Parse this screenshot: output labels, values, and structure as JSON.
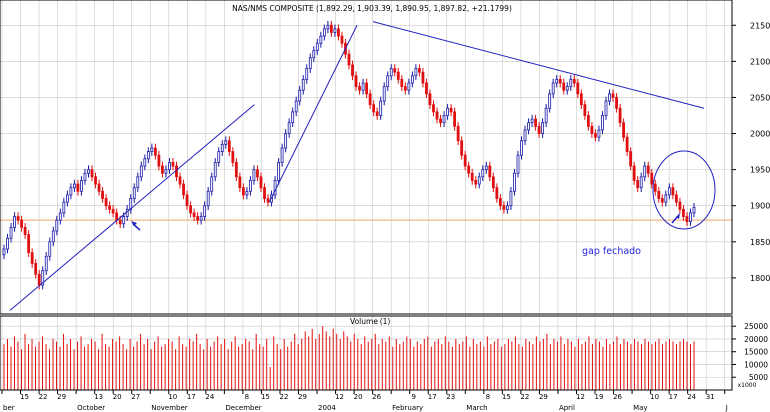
{
  "chart_data": [
    {
      "type": "candlestick",
      "title": "NAS/NMS COMPOSITE (1,892.29, 1,903.39, 1,890.95, 1,897.82, +21.1799)",
      "y_ticks": [
        1800,
        1850,
        1900,
        1950,
        2000,
        2050,
        2100,
        2150
      ],
      "ylim": [
        1750,
        2185
      ],
      "x_labels": [
        "ber",
        "15",
        "22",
        "29",
        "October",
        "13",
        "20",
        "27",
        "November",
        "10",
        "17",
        "24",
        "December",
        "8",
        "15",
        "22",
        "29",
        "2004",
        "12",
        "20",
        "26",
        "February",
        "9",
        "17",
        "23",
        "March",
        "8",
        "15",
        "22",
        "29",
        "April",
        "12",
        "19",
        "26",
        "May",
        "10",
        "17",
        "24",
        "31",
        "J"
      ],
      "closes": [
        1840,
        1855,
        1870,
        1885,
        1880,
        1870,
        1860,
        1835,
        1820,
        1805,
        1790,
        1810,
        1830,
        1850,
        1865,
        1880,
        1890,
        1905,
        1915,
        1925,
        1930,
        1920,
        1935,
        1945,
        1950,
        1940,
        1930,
        1920,
        1910,
        1900,
        1895,
        1890,
        1880,
        1875,
        1885,
        1895,
        1910,
        1925,
        1940,
        1955,
        1965,
        1975,
        1980,
        1970,
        1955,
        1945,
        1950,
        1960,
        1955,
        1940,
        1930,
        1915,
        1900,
        1890,
        1885,
        1880,
        1885,
        1900,
        1920,
        1940,
        1960,
        1975,
        1985,
        1990,
        1975,
        1960,
        1940,
        1925,
        1915,
        1920,
        1935,
        1950,
        1940,
        1925,
        1910,
        1905,
        1915,
        1935,
        1960,
        1980,
        2000,
        2015,
        2030,
        2045,
        2060,
        2075,
        2090,
        2105,
        2115,
        2125,
        2135,
        2145,
        2150,
        2140,
        2145,
        2135,
        2125,
        2110,
        2095,
        2080,
        2065,
        2060,
        2070,
        2055,
        2040,
        2030,
        2025,
        2045,
        2065,
        2080,
        2090,
        2085,
        2075,
        2065,
        2060,
        2070,
        2080,
        2090,
        2085,
        2070,
        2055,
        2040,
        2030,
        2020,
        2015,
        2025,
        2035,
        2030,
        2010,
        1990,
        1970,
        1955,
        1945,
        1935,
        1930,
        1940,
        1950,
        1955,
        1940,
        1925,
        1910,
        1900,
        1895,
        1900,
        1920,
        1945,
        1970,
        1990,
        2005,
        2015,
        2020,
        2010,
        2000,
        2015,
        2035,
        2055,
        2070,
        2075,
        2070,
        2060,
        2065,
        2075,
        2070,
        2055,
        2040,
        2025,
        2010,
        2000,
        1995,
        2005,
        2025,
        2045,
        2055,
        2050,
        2035,
        2015,
        1995,
        1975,
        1955,
        1935,
        1925,
        1940,
        1955,
        1945,
        1930,
        1920,
        1910,
        1905,
        1915,
        1925,
        1915,
        1905,
        1895,
        1885,
        1878,
        1890,
        1897.82
      ],
      "reference_line": 1880,
      "volume": {
        "title": "Volume",
        "legend": "(1)",
        "y_ticks": [
          5000,
          10000,
          15000,
          20000,
          25000
        ],
        "ylim": [
          0,
          29000
        ],
        "unit_label": "x1000",
        "values": [
          18000,
          20000,
          17000,
          21000,
          19000,
          16000,
          22000,
          18000,
          20000,
          17000,
          19000,
          21000,
          18000,
          16000,
          20000,
          19000,
          17000,
          22000,
          18000,
          20000,
          16000,
          19000,
          21000,
          17000,
          18000,
          20000,
          19000,
          16000,
          22000,
          18000,
          17000,
          20000,
          19000,
          21000,
          18000,
          16000,
          20000,
          17000,
          19000,
          22000,
          18000,
          20000,
          16000,
          19000,
          21000,
          17000,
          18000,
          20000,
          19000,
          16000,
          21000,
          18000,
          17000,
          20000,
          19000,
          22000,
          18000,
          16000,
          20000,
          17000,
          19000,
          21000,
          18000,
          20000,
          16000,
          19000,
          21000,
          17000,
          18000,
          20000,
          19000,
          16000,
          22000,
          18000,
          17000,
          20000,
          9000,
          21000,
          18000,
          16000,
          20000,
          17000,
          19000,
          22000,
          18000,
          20000,
          23000,
          21000,
          24000,
          20000,
          22000,
          25000,
          23000,
          21000,
          24000,
          22000,
          20000,
          23000,
          21000,
          19000,
          22000,
          20000,
          18000,
          21000,
          19000,
          20000,
          22000,
          18000,
          20000,
          19000,
          21000,
          17000,
          20000,
          18000,
          19000,
          21000,
          20000,
          17000,
          19000,
          18000,
          20000,
          21000,
          17000,
          19000,
          20000,
          18000,
          21000,
          19000,
          17000,
          20000,
          18000,
          19000,
          21000,
          17000,
          20000,
          18000,
          19000,
          17000,
          21000,
          18000,
          19000,
          20000,
          17000,
          18000,
          20000,
          19000,
          21000,
          18000,
          17000,
          20000,
          19000,
          18000,
          21000,
          19000,
          20000,
          22000,
          18000,
          20000,
          19000,
          21000,
          18000,
          20000,
          19000,
          17000,
          20000,
          18000,
          19000,
          21000,
          18000,
          20000,
          19000,
          17000,
          20000,
          18000,
          19000,
          21000,
          18000,
          20000,
          19000,
          18000,
          20000,
          19000,
          18000,
          20000,
          19000,
          18000,
          19000,
          20000,
          18000,
          19000,
          20000,
          19000,
          18000,
          19000,
          20000,
          19000,
          18000,
          19000
        ]
      },
      "annotations": [
        {
          "text": "gap fechado",
          "x": "May",
          "y": 1850,
          "color": "#2222dd"
        }
      ],
      "trendlines": [
        {
          "from": [
            "ber",
            1755
          ],
          "to": [
            "December",
            2040
          ]
        },
        {
          "from": [
            "December",
            1905
          ],
          "to": [
            "2004",
            2150
          ]
        },
        {
          "from": [
            "2004",
            2155
          ],
          "to": [
            "May",
            2035
          ]
        }
      ],
      "colors": {
        "up": "#1a1aa8",
        "down": "#e01010",
        "reference_line": "#f0a868",
        "trendline": "#2020c0",
        "grid": "#c8c8c8"
      }
    }
  ]
}
